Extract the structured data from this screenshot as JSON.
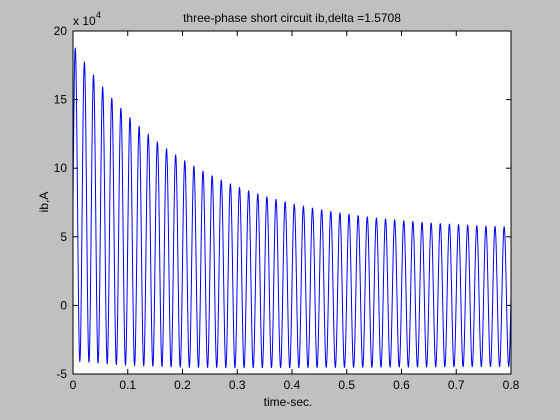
{
  "chart_data": {
    "type": "line",
    "title": "three-phase short circuit ib,delta =1.5708",
    "xlabel": "time-sec.",
    "ylabel": "ib,A",
    "y_multiplier_base": "x 10",
    "y_multiplier_exp": "4",
    "xlim": [
      0,
      0.8
    ],
    "ylim": [
      -5,
      20
    ],
    "xticks": [
      0,
      0.1,
      0.2,
      0.3,
      0.4,
      0.5,
      0.6,
      0.7,
      0.8
    ],
    "xtick_labels": [
      "0",
      "0.1",
      "0.2",
      "0.3",
      "0.4",
      "0.5",
      "0.6",
      "0.7",
      "0.8"
    ],
    "yticks": [
      -5,
      0,
      5,
      10,
      15,
      20
    ],
    "ytick_labels": [
      "-5",
      "0",
      "5",
      "10",
      "15",
      "20"
    ],
    "grid": false,
    "series": [
      {
        "color": "#0000ff",
        "frequency_hz": 60,
        "dc_offset_initial": 7.5,
        "dc_offset_final": 0.5,
        "dc_time_constant": 0.2,
        "ac_amplitude_initial": 11.5,
        "ac_amplitude_final": 4.9,
        "ac_time_constant": 0.22,
        "peaks": [
          [
            0.004,
            19.2
          ],
          [
            0.1,
            13.3
          ],
          [
            0.2,
            11.0
          ],
          [
            0.3,
            9.0
          ],
          [
            0.4,
            7.5
          ],
          [
            0.5,
            6.5
          ],
          [
            0.6,
            6.0
          ],
          [
            0.7,
            5.6
          ],
          [
            0.8,
            5.3
          ]
        ],
        "troughs": [
          [
            0.0125,
            -4.3
          ],
          [
            0.1,
            -4.1
          ],
          [
            0.3,
            -4.4
          ],
          [
            0.5,
            -4.8
          ],
          [
            0.8,
            -4.9
          ]
        ]
      }
    ]
  }
}
